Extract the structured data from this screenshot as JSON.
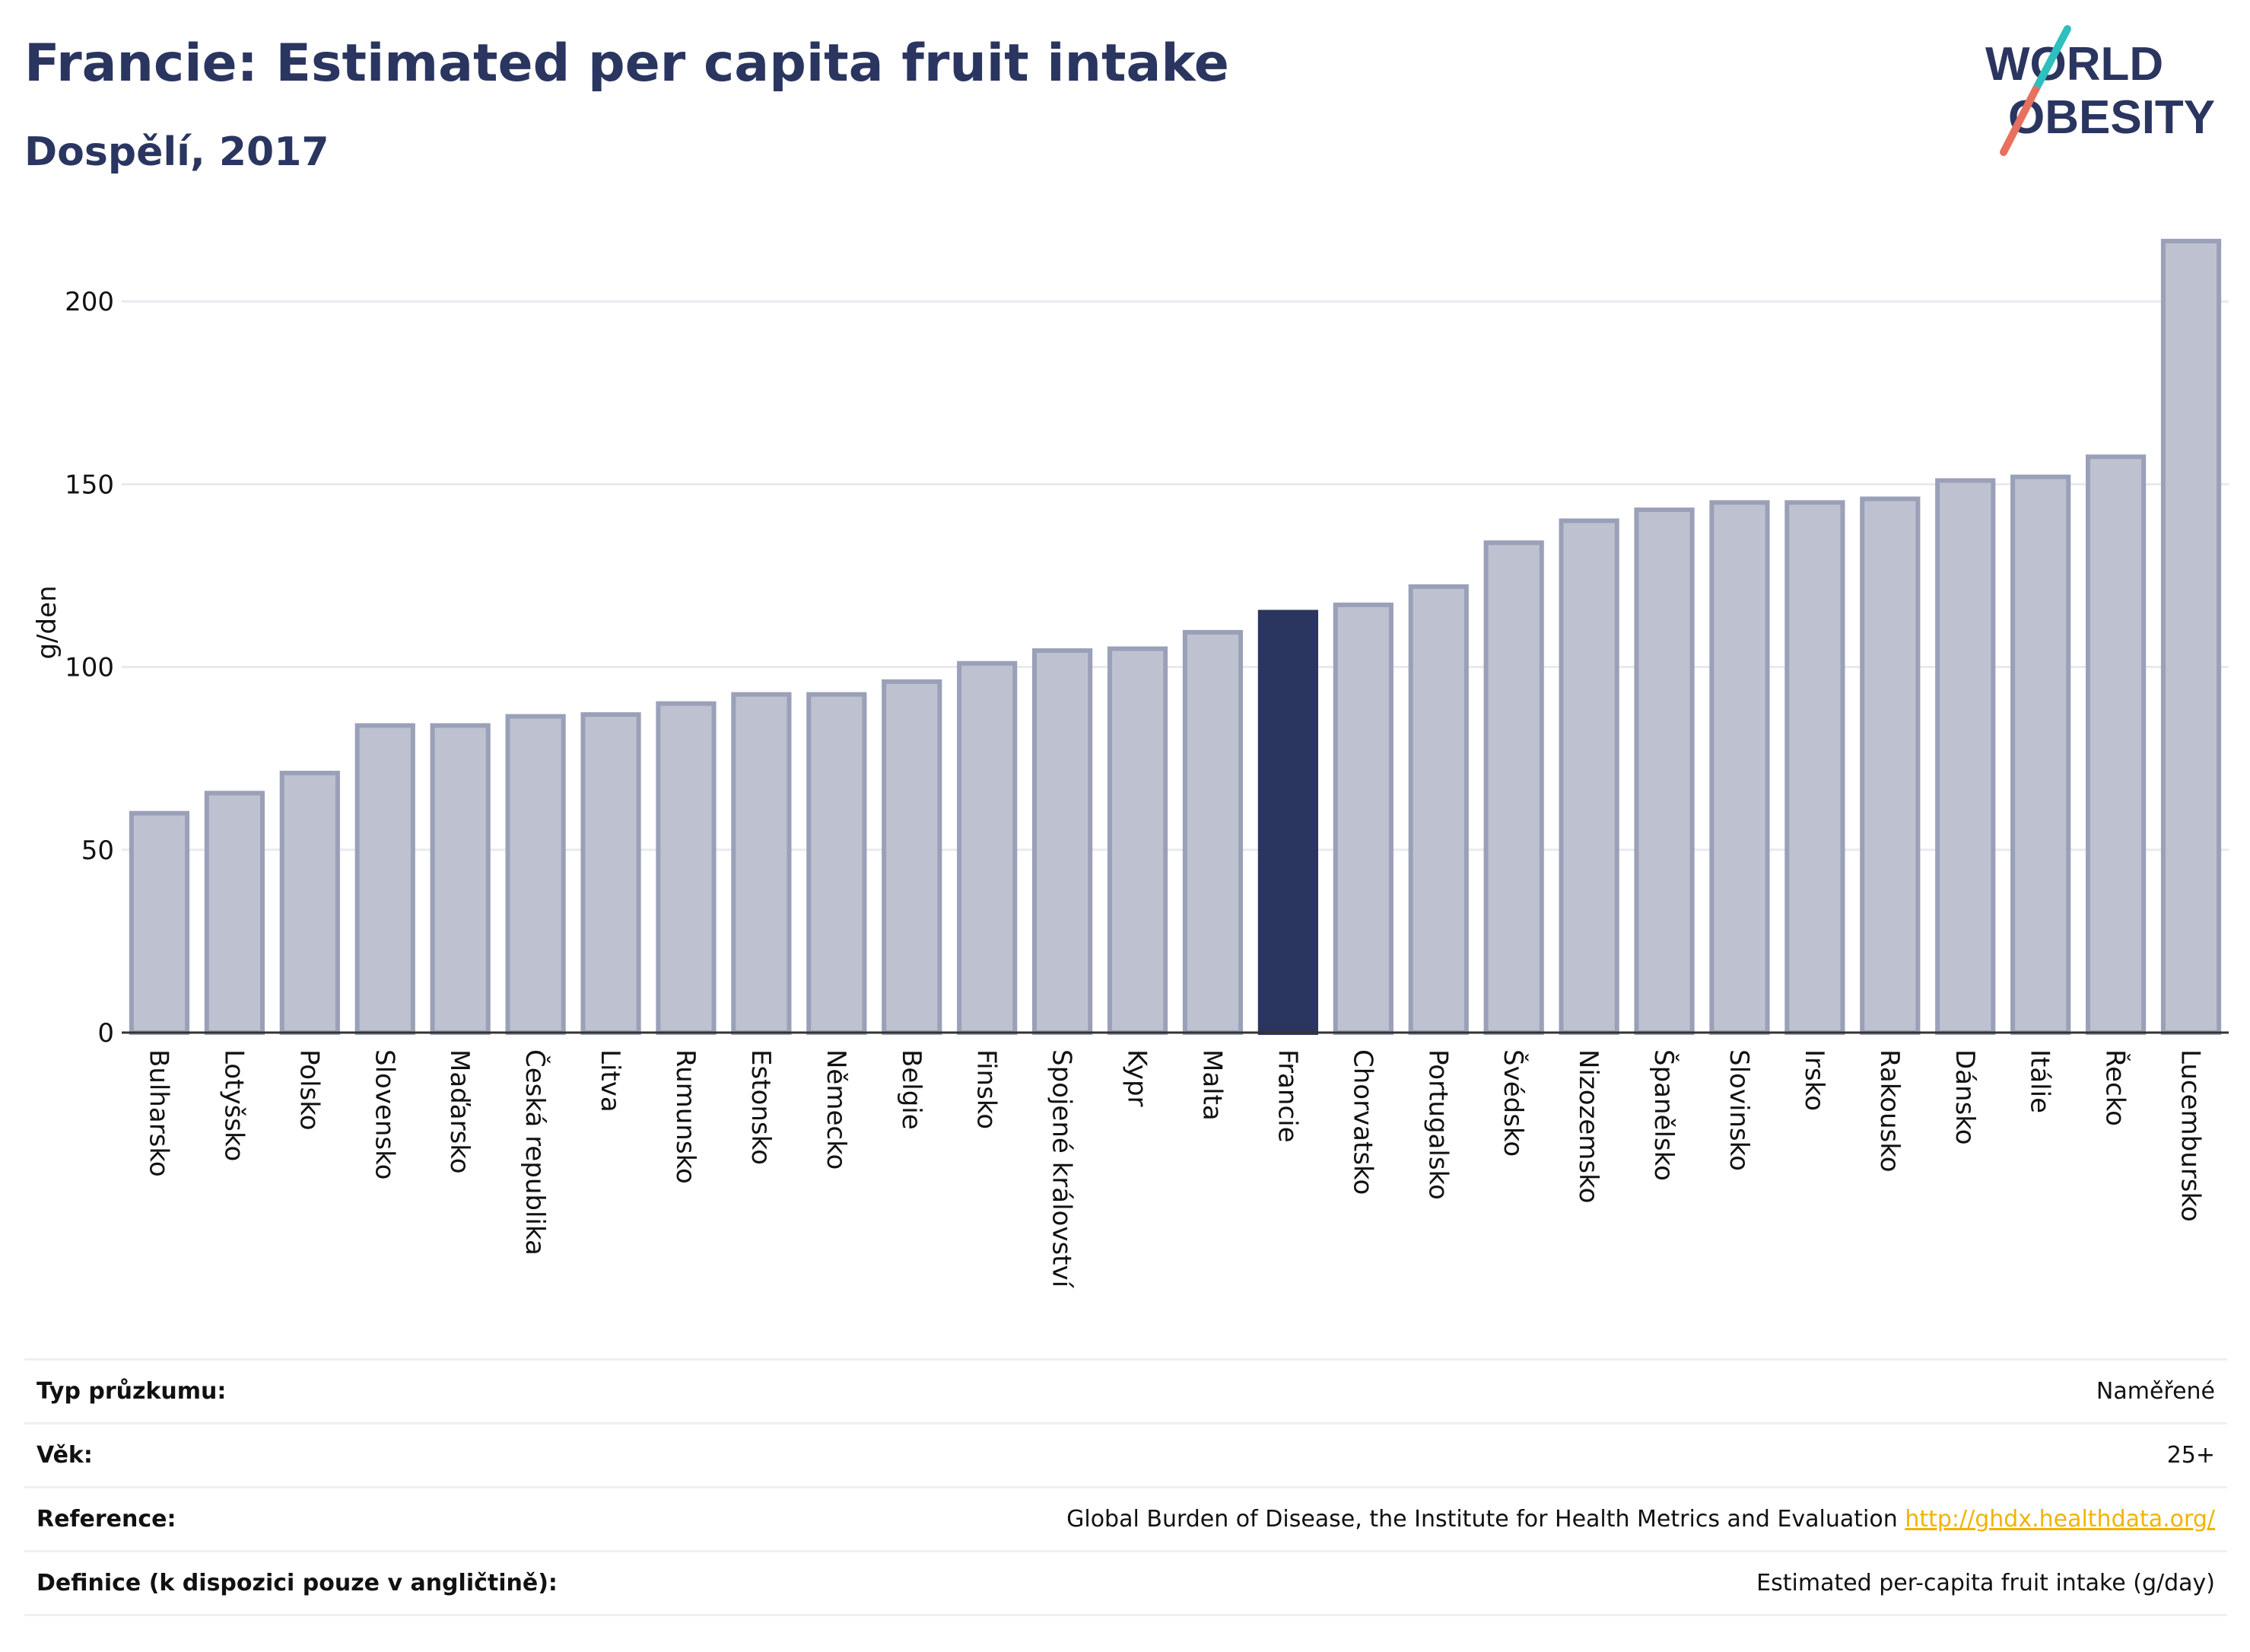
{
  "header": {
    "title": "Francie: Estimated per capita fruit intake",
    "subtitle": "Dospělí, 2017"
  },
  "logo": {
    "line1": "WORLD",
    "line2": "OBESITY",
    "colors": {
      "text": "#2a3560",
      "slash_top": "#2ebfbf",
      "slash_bottom": "#e8705f"
    }
  },
  "chart_data": {
    "type": "bar",
    "ylabel": "g/den",
    "ylim": [
      0,
      220
    ],
    "yticks": [
      0,
      50,
      100,
      150,
      200
    ],
    "grid": true,
    "highlight": "Francie",
    "colors": {
      "bar": "#bec1cf",
      "bar_edge": "#9aa0b8",
      "highlight": "#2a3560"
    },
    "categories": [
      "Bulharsko",
      "Lotyšsko",
      "Polsko",
      "Slovensko",
      "Maďarsko",
      "Česká republika",
      "Litva",
      "Rumunsko",
      "Estonsko",
      "Německo",
      "Belgie",
      "Finsko",
      "Spojené království",
      "Kypr",
      "Malta",
      "Francie",
      "Chorvatsko",
      "Portugalsko",
      "Švédsko",
      "Nizozemsko",
      "Španělsko",
      "Slovinsko",
      "Irsko",
      "Rakousko",
      "Dánsko",
      "Itálie",
      "Řecko",
      "Lucembursko"
    ],
    "values": [
      60,
      65.5,
      71,
      84,
      84,
      86.5,
      87,
      90,
      92.5,
      92.5,
      96,
      101,
      104.5,
      105,
      109.5,
      115,
      117,
      122,
      134,
      140,
      143,
      145,
      145,
      146,
      151,
      152,
      157.5,
      216.5
    ]
  },
  "info": {
    "rows": [
      {
        "label": "Typ průzkumu:",
        "value": "Naměřené"
      },
      {
        "label": "Věk:",
        "value": "25+"
      },
      {
        "label": "Reference:",
        "value": "Global Burden of Disease, the Institute for Health Metrics and Evaluation",
        "link": "http://ghdx.healthdata.org/"
      },
      {
        "label": "Definice (k dispozici pouze v angličtině):",
        "value": "Estimated per-capita fruit intake (g/day)"
      }
    ]
  }
}
